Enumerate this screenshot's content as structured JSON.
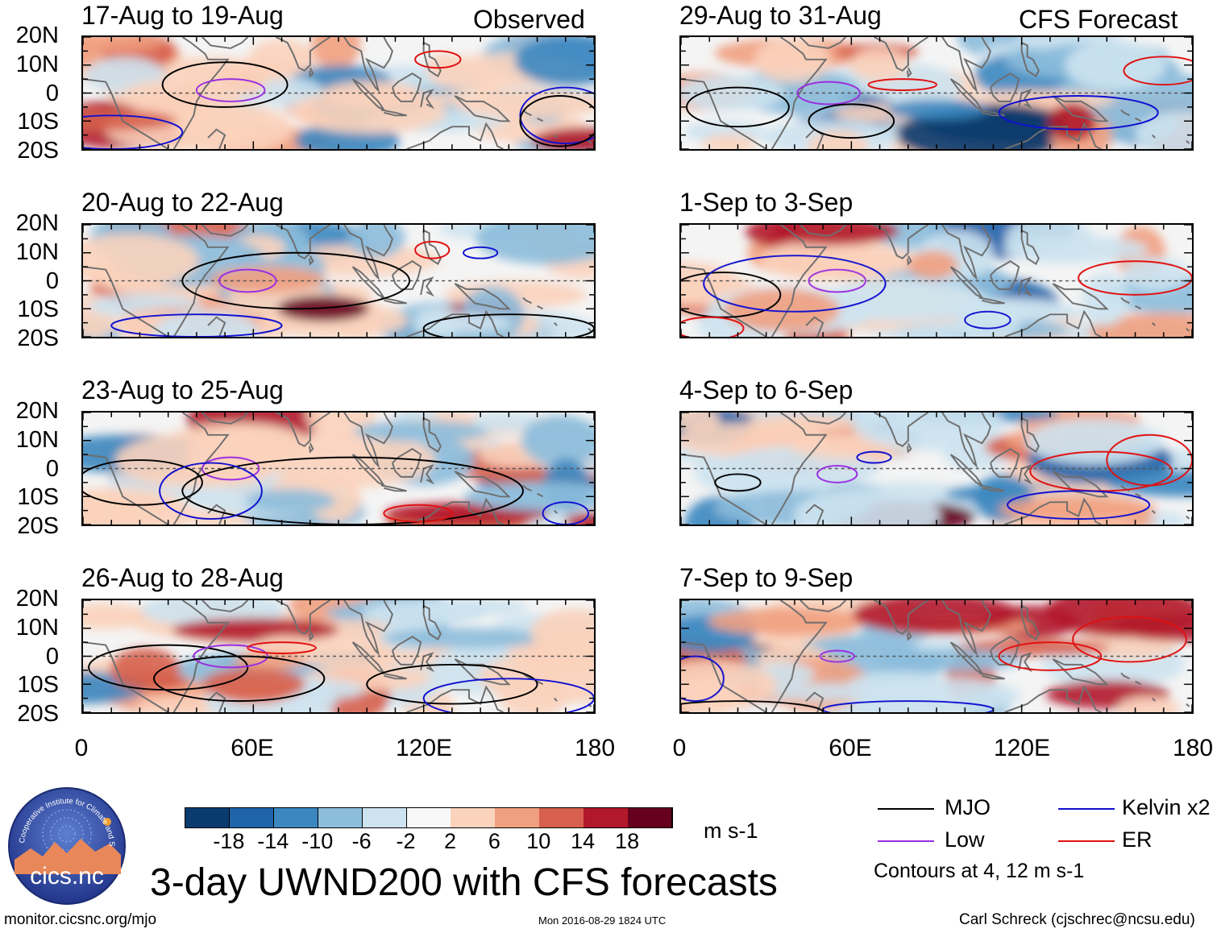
{
  "figure": {
    "main_title": "3-day UWND200 with CFS forecasts",
    "units": "m s-1",
    "contour_note": "Contours at 4, 12 m s-1",
    "footer_left": "monitor.cicsnc.org/mjo",
    "footer_center": "Mon 2016-08-29 1824 UTC",
    "footer_right": "Carl Schreck (cjschrec@ncsu.edu)",
    "logo_text": "cics.nc",
    "logo_ring_text": "Cooperative Institute for Climate and Satellites",
    "observed_tag": "Observed",
    "forecast_tag": "CFS Forecast"
  },
  "chart_data": {
    "type": "heatmap",
    "variable": "200-hPa zonal wind anomaly (UWND200)",
    "x_range": [
      0,
      180
    ],
    "y_range": [
      -20,
      20
    ],
    "y_tick_labels": [
      "20N",
      "10N",
      "0",
      "10S",
      "20S"
    ],
    "x_tick_labels": [
      "0",
      "60E",
      "120E",
      "180"
    ],
    "colorbar_ticks": [
      "-18",
      "-14",
      "-10",
      "-6",
      "-2",
      "2",
      "6",
      "10",
      "14",
      "18"
    ],
    "colorbar_colors": [
      "#0a3b6e",
      "#1f63a8",
      "#3b87c0",
      "#8cbddb",
      "#cde3ef",
      "#f8f8f8",
      "#fbd3bd",
      "#f1a07f",
      "#d6604d",
      "#b2182b",
      "#67001f"
    ],
    "legend": [
      {
        "name": "MJO",
        "color": "#000000"
      },
      {
        "name": "Kelvin x2",
        "color": "#1010d0"
      },
      {
        "name": "Low",
        "color": "#9a30e0"
      },
      {
        "name": "ER",
        "color": "#e01010"
      }
    ],
    "panels": [
      {
        "title": "17-Aug to 19-Aug",
        "kind": "observed"
      },
      {
        "title": "20-Aug to 22-Aug",
        "kind": "observed"
      },
      {
        "title": "23-Aug to 25-Aug",
        "kind": "observed"
      },
      {
        "title": "26-Aug to 28-Aug",
        "kind": "observed"
      },
      {
        "title": "29-Aug to 31-Aug",
        "kind": "forecast"
      },
      {
        "title": "1-Sep to 3-Sep",
        "kind": "forecast"
      },
      {
        "title": "4-Sep to 6-Sep",
        "kind": "forecast"
      },
      {
        "title": "7-Sep to 9-Sep",
        "kind": "forecast"
      }
    ]
  }
}
